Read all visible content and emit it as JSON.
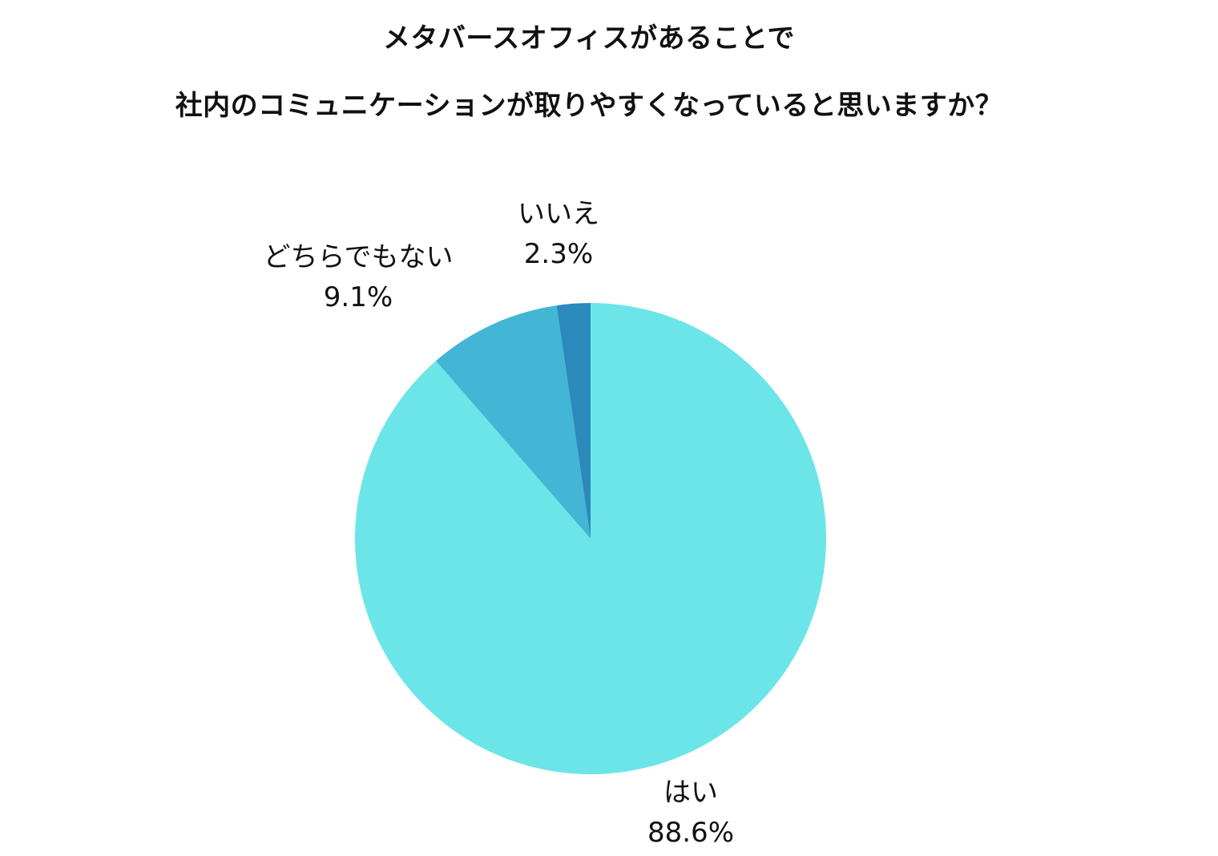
{
  "chart_data": {
    "type": "pie",
    "title": [
      "メタバースオフィスがあることで",
      "社内のコミュニケーションが取りやすくなっていると思いますか？"
    ],
    "start_angle_deg": 0,
    "direction": "clockwise",
    "slices": [
      {
        "label": "はい",
        "value": 88.6,
        "value_label": "88.6%",
        "color": "#6ce5e8"
      },
      {
        "label": "どちらでもない",
        "value": 9.1,
        "value_label": "9.1%",
        "color": "#42b6d4"
      },
      {
        "label": "いいえ",
        "value": 2.3,
        "value_label": "2.3%",
        "color": "#2b89bb"
      }
    ]
  }
}
